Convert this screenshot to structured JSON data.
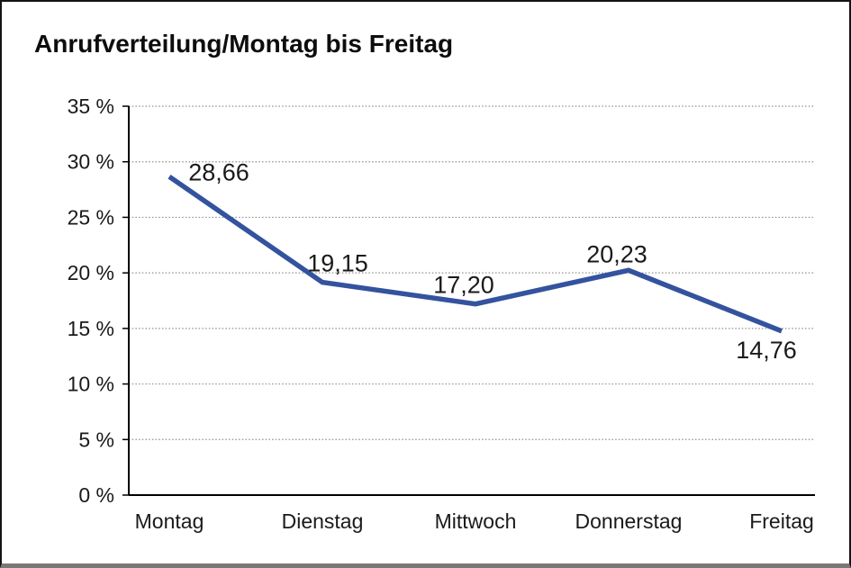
{
  "chart_data": {
    "type": "line",
    "title": "Anrufverteilung/Montag bis Freitag",
    "categories": [
      "Montag",
      "Dienstag",
      "Mittwoch",
      "Donnerstag",
      "Freitag"
    ],
    "series": [
      {
        "name": "Anrufverteilung",
        "values": [
          28.66,
          19.15,
          17.2,
          20.23,
          14.76
        ]
      }
    ],
    "value_labels": [
      "28,66",
      "19,15",
      "17,20",
      "20,23",
      "14,76"
    ],
    "xlabel": "",
    "ylabel": "",
    "ylim": [
      0,
      35
    ],
    "y_tick_step": 5,
    "y_tick_labels": [
      "0 %",
      "5 %",
      "10 %",
      "15 %",
      "20 %",
      "25 %",
      "30 %",
      "35 %"
    ],
    "grid": "horizontal-dotted",
    "legend_position": "none",
    "colors": {
      "line": "#34539E",
      "axis": "#000000",
      "gridline": "#8f8f8f",
      "text": "#1a1a1a",
      "frame_border": "#141414",
      "frame_bottom": "#787878",
      "background": "#ffffff"
    }
  }
}
